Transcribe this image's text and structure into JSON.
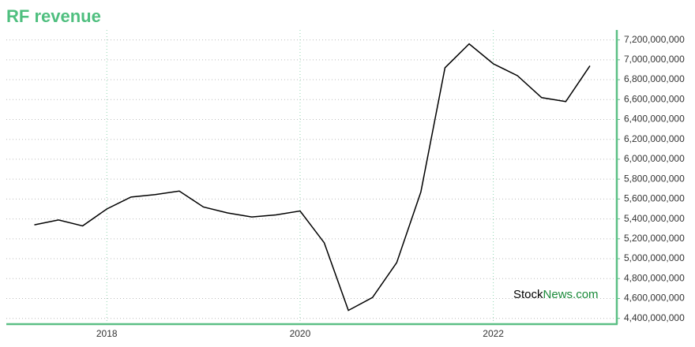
{
  "chart_data": {
    "type": "line",
    "title": "RF revenue",
    "x": [
      2017.25,
      2017.5,
      2017.75,
      2018.0,
      2018.25,
      2018.5,
      2018.75,
      2019.0,
      2019.25,
      2019.5,
      2019.75,
      2020.0,
      2020.25,
      2020.5,
      2020.75,
      2021.0,
      2021.25,
      2021.5,
      2021.75,
      2022.0,
      2022.25,
      2022.5,
      2022.75,
      2023.0
    ],
    "series": [
      {
        "name": "RF revenue",
        "color": "#000000",
        "values": [
          5340000000,
          5390000000,
          5330000000,
          5500000000,
          5620000000,
          5645000000,
          5680000000,
          5520000000,
          5460000000,
          5420000000,
          5440000000,
          5480000000,
          5160000000,
          4480000000,
          4610000000,
          4960000000,
          5670000000,
          6920000000,
          7160000000,
          6960000000,
          6840000000,
          6620000000,
          6580000000,
          6940000000
        ]
      }
    ],
    "xlim": [
      2016.96,
      2023.27
    ],
    "xticks": [
      2018,
      2020,
      2022
    ],
    "ylim": [
      4350000000,
      7300000000
    ],
    "yticks": [
      {
        "value": 4400000000,
        "label": "4,400,000,000"
      },
      {
        "value": 4600000000,
        "label": "4,600,000,000"
      },
      {
        "value": 4800000000,
        "label": "4,800,000,000"
      },
      {
        "value": 5000000000,
        "label": "5,000,000,000"
      },
      {
        "value": 5200000000,
        "label": "5,200,000,000"
      },
      {
        "value": 5400000000,
        "label": "5,400,000,000"
      },
      {
        "value": 5600000000,
        "label": "5,600,000,000"
      },
      {
        "value": 5800000000,
        "label": "5,800,000,000"
      },
      {
        "value": 6000000000,
        "label": "6,000,000,000"
      },
      {
        "value": 6200000000,
        "label": "6,200,000,000"
      },
      {
        "value": 6400000000,
        "label": "6,400,000,000"
      },
      {
        "value": 6600000000,
        "label": "6,600,000,000"
      },
      {
        "value": 6800000000,
        "label": "6,800,000,000"
      },
      {
        "value": 7000000000,
        "label": "7,000,000,000"
      },
      {
        "value": 7200000000,
        "label": "7,200,000,000"
      }
    ],
    "grid": true,
    "watermark_parts": [
      "Stock",
      "News.com"
    ]
  }
}
